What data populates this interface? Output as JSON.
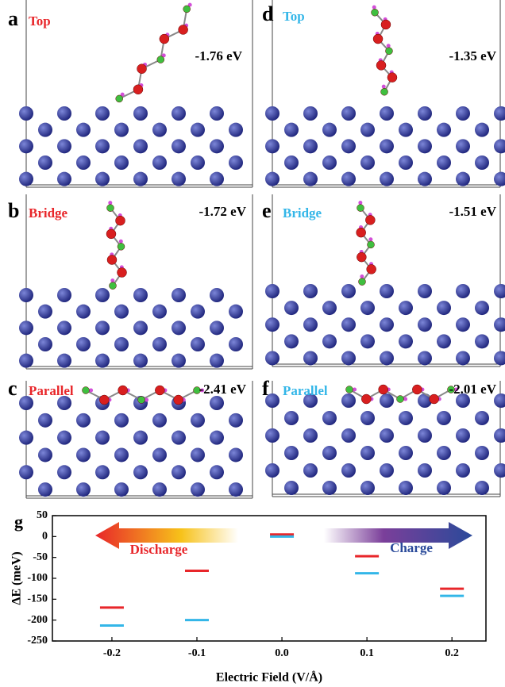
{
  "panels": [
    {
      "letter": "a",
      "label": "Top",
      "energy": "-1.76 eV"
    },
    {
      "letter": "b",
      "label": "Bridge",
      "energy": "-1.72 eV"
    },
    {
      "letter": "c",
      "label": "Parallel",
      "energy": "-2.41 eV"
    },
    {
      "letter": "d",
      "label": "Top",
      "energy": "-1.35 eV"
    },
    {
      "letter": "e",
      "label": "Bridge",
      "energy": "-1.51 eV"
    },
    {
      "letter": "f",
      "label": "Parallel",
      "energy": "-2.01 eV"
    }
  ],
  "chart_data": {
    "type": "level",
    "letter": "g",
    "x_label": "Electric Field (V/Å)",
    "y_label": "ΔE (meV)",
    "x": [
      -0.2,
      -0.1,
      0,
      0.1,
      0.2
    ],
    "series": [
      {
        "color": "#e8262a",
        "values": [
          -170,
          -82,
          5,
          -47,
          -125
        ]
      },
      {
        "color": "#33b6e8",
        "values": [
          -213,
          -200,
          0,
          -88,
          -142
        ]
      }
    ],
    "xlim": [
      -0.27,
      0.24
    ],
    "ylim": [
      -250,
      50
    ],
    "xticks": [
      -0.2,
      -0.1,
      {
        "value": 0,
        "label": "0.0"
      },
      0.1,
      0.2
    ],
    "yticks": [
      -250,
      -200,
      -150,
      -100,
      -50,
      0,
      50
    ],
    "annotations": [
      "Discharge",
      "Charge"
    ]
  }
}
